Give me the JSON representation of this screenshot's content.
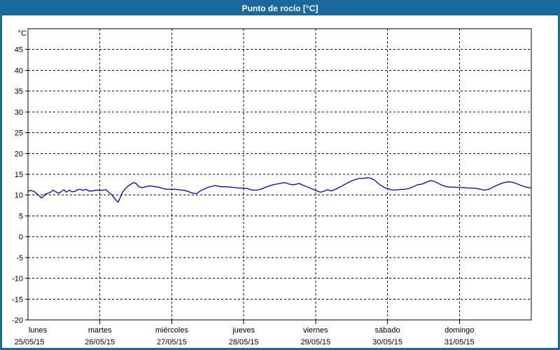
{
  "window": {
    "title": "Punto de rocío [°C]"
  },
  "colors": {
    "titlebar_bg": "#1a689c",
    "titlebar_text": "#ffffff",
    "window_border": "#1a689c",
    "plot_bg": "#ffffff",
    "frame": "#000000",
    "grid": "#000000",
    "axis_text": "#000000",
    "line": "#0000c8"
  },
  "chart_data": {
    "type": "line",
    "title": "Punto de rocío [°C]",
    "unit_label": "°C",
    "ylim": [
      -20,
      50
    ],
    "yticks": [
      45,
      40,
      35,
      30,
      25,
      20,
      15,
      10,
      5,
      0,
      -5,
      -10,
      -15,
      -20
    ],
    "grid": "dotted",
    "legend": "none",
    "x_total_hours": 168,
    "x_days": [
      {
        "name": "lunes",
        "date": "25/05/15"
      },
      {
        "name": "martes",
        "date": "26/05/15"
      },
      {
        "name": "miércoles",
        "date": "27/05/15"
      },
      {
        "name": "jueves",
        "date": "28/05/15"
      },
      {
        "name": "viernes",
        "date": "29/05/15"
      },
      {
        "name": "sábado",
        "date": "30/05/15"
      },
      {
        "name": "domingo",
        "date": "31/05/15"
      }
    ],
    "series": [
      {
        "name": "Punto de rocío",
        "color": "#0000c8",
        "points_hour_value": [
          [
            0,
            11.0
          ],
          [
            1,
            11.1
          ],
          [
            2,
            10.9
          ],
          [
            3.5,
            10.0
          ],
          [
            4.5,
            9.3
          ],
          [
            5.2,
            9.7
          ],
          [
            5.8,
            10.3
          ],
          [
            6.6,
            10.4
          ],
          [
            7.5,
            10.7
          ],
          [
            8.4,
            11.2
          ],
          [
            9.3,
            10.8
          ],
          [
            10.3,
            10.4
          ],
          [
            11.2,
            10.9
          ],
          [
            12,
            11.3
          ],
          [
            12.8,
            10.7
          ],
          [
            13.8,
            11.2
          ],
          [
            14.7,
            10.8
          ],
          [
            15.6,
            10.9
          ],
          [
            16.6,
            11.3
          ],
          [
            17.5,
            11.4
          ],
          [
            18.4,
            11.1
          ],
          [
            19.4,
            11.4
          ],
          [
            20.3,
            11.0
          ],
          [
            21.2,
            11.0
          ],
          [
            22.2,
            11.1
          ],
          [
            23.1,
            11.2
          ],
          [
            24,
            11.1
          ],
          [
            25,
            11.2
          ],
          [
            26,
            11.3
          ],
          [
            26.8,
            10.8
          ],
          [
            27.8,
            10.2
          ],
          [
            28.7,
            9.4
          ],
          [
            29.6,
            8.6
          ],
          [
            30.1,
            8.3
          ],
          [
            30.8,
            9.4
          ],
          [
            31.5,
            10.6
          ],
          [
            32.4,
            11.5
          ],
          [
            33.3,
            12.1
          ],
          [
            34.3,
            12.6
          ],
          [
            35.2,
            13.0
          ],
          [
            36.1,
            12.8
          ],
          [
            37,
            12.0
          ],
          [
            38,
            11.8
          ],
          [
            38.9,
            11.9
          ],
          [
            39.8,
            12.1
          ],
          [
            40.8,
            12.2
          ],
          [
            41.7,
            12.1
          ],
          [
            42.6,
            12.0
          ],
          [
            43.6,
            11.9
          ],
          [
            44.5,
            11.7
          ],
          [
            45.5,
            11.5
          ],
          [
            46.4,
            11.4
          ],
          [
            47.3,
            11.4
          ],
          [
            48.3,
            11.4
          ],
          [
            49.3,
            11.4
          ],
          [
            50.2,
            11.3
          ],
          [
            51.3,
            11.2
          ],
          [
            52.5,
            11.1
          ],
          [
            53.4,
            10.9
          ],
          [
            54.4,
            10.6
          ],
          [
            55.5,
            10.4
          ],
          [
            56.2,
            10.3
          ],
          [
            57.1,
            10.8
          ],
          [
            58,
            11.2
          ],
          [
            59,
            11.5
          ],
          [
            60.2,
            11.9
          ],
          [
            61.4,
            12.1
          ],
          [
            62.5,
            12.3
          ],
          [
            63.7,
            12.1
          ],
          [
            64.8,
            12.0
          ],
          [
            66.2,
            12.0
          ],
          [
            67.7,
            11.9
          ],
          [
            69,
            11.8
          ],
          [
            70.5,
            11.7
          ],
          [
            72,
            11.7
          ],
          [
            73.5,
            11.5
          ],
          [
            74.9,
            11.2
          ],
          [
            76.3,
            11.2
          ],
          [
            77.7,
            11.4
          ],
          [
            79.1,
            11.8
          ],
          [
            80.5,
            12.2
          ],
          [
            81.9,
            12.5
          ],
          [
            83.3,
            12.7
          ],
          [
            84.7,
            12.9
          ],
          [
            85.9,
            13.0
          ],
          [
            87,
            12.7
          ],
          [
            88.2,
            12.5
          ],
          [
            89.4,
            12.6
          ],
          [
            90.5,
            12.8
          ],
          [
            91.7,
            12.4
          ],
          [
            93.1,
            12.0
          ],
          [
            94.5,
            11.6
          ],
          [
            95.8,
            11.2
          ],
          [
            96.8,
            10.9
          ],
          [
            97.7,
            10.7
          ],
          [
            98.9,
            11.0
          ],
          [
            100,
            11.3
          ],
          [
            101.2,
            11.0
          ],
          [
            102.3,
            11.3
          ],
          [
            103.5,
            11.7
          ],
          [
            104.9,
            12.2
          ],
          [
            106.3,
            12.8
          ],
          [
            107.7,
            13.3
          ],
          [
            109.1,
            13.7
          ],
          [
            110.5,
            14.0
          ],
          [
            112,
            14.0
          ],
          [
            113.4,
            14.2
          ],
          [
            114.5,
            14.0
          ],
          [
            115.7,
            13.6
          ],
          [
            116.9,
            12.8
          ],
          [
            118.1,
            12.2
          ],
          [
            119,
            11.8
          ],
          [
            120,
            11.6
          ],
          [
            121.2,
            11.3
          ],
          [
            122.3,
            11.2
          ],
          [
            123.5,
            11.3
          ],
          [
            124.7,
            11.4
          ],
          [
            125.8,
            11.4
          ],
          [
            127.2,
            11.6
          ],
          [
            128.6,
            12.0
          ],
          [
            130,
            12.5
          ],
          [
            131.2,
            12.6
          ],
          [
            132.1,
            12.8
          ],
          [
            133.3,
            13.2
          ],
          [
            134.5,
            13.5
          ],
          [
            135.6,
            13.3
          ],
          [
            137,
            12.8
          ],
          [
            138.4,
            12.3
          ],
          [
            139.8,
            12.0
          ],
          [
            141.2,
            11.9
          ],
          [
            142.6,
            11.9
          ],
          [
            144,
            11.8
          ],
          [
            145.4,
            11.8
          ],
          [
            146.8,
            11.7
          ],
          [
            148.2,
            11.7
          ],
          [
            149.6,
            11.6
          ],
          [
            151,
            11.4
          ],
          [
            152.4,
            11.2
          ],
          [
            153.8,
            11.4
          ],
          [
            155.2,
            11.9
          ],
          [
            156.6,
            12.4
          ],
          [
            158,
            12.8
          ],
          [
            159.4,
            13.1
          ],
          [
            160.8,
            13.2
          ],
          [
            162.2,
            13.0
          ],
          [
            163.6,
            12.6
          ],
          [
            165,
            12.2
          ],
          [
            166.4,
            11.9
          ],
          [
            168,
            11.7
          ]
        ]
      }
    ]
  }
}
